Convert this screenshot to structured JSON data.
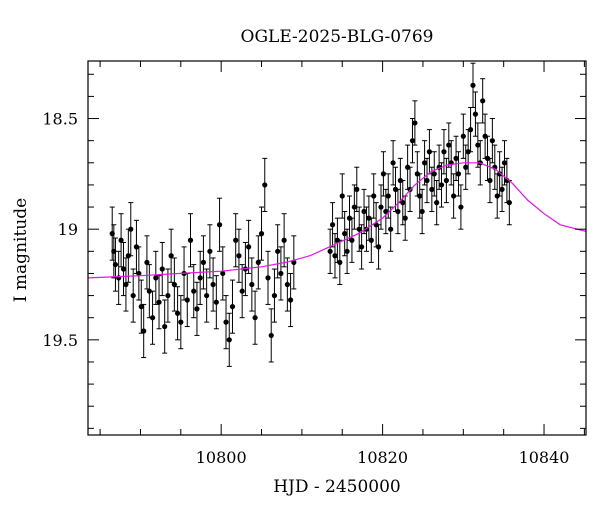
{
  "chart_data": {
    "type": "scatter",
    "title": "OGLE-2025-BLG-0769",
    "xlabel": "HJD - 2450000",
    "ylabel": "I magnitude",
    "xlim": [
      10783.5,
      10845.2
    ],
    "ylim": [
      19.93,
      18.24
    ],
    "y_inverted": true,
    "x_ticks": [
      10800,
      10820,
      10840
    ],
    "x_tick_labels": [
      "10800",
      "10820",
      "10840"
    ],
    "y_ticks": [
      18.5,
      19,
      19.5
    ],
    "y_tick_labels": [
      "18.5",
      "19",
      "19.5"
    ],
    "grid": false,
    "colors": {
      "points": "#000000",
      "model": "#e815e8",
      "frame": "#000000"
    },
    "series": [
      {
        "kind": "points",
        "points": [
          {
            "x": 10786.5,
            "y": 19.02,
            "e": 0.12
          },
          {
            "x": 10786.7,
            "y": 19.1,
            "e": 0.12
          },
          {
            "x": 10786.9,
            "y": 19.16,
            "e": 0.12
          },
          {
            "x": 10787.3,
            "y": 19.22,
            "e": 0.12
          },
          {
            "x": 10787.6,
            "y": 19.05,
            "e": 0.12
          },
          {
            "x": 10787.9,
            "y": 19.18,
            "e": 0.12
          },
          {
            "x": 10788.2,
            "y": 19.25,
            "e": 0.12
          },
          {
            "x": 10788.5,
            "y": 19.12,
            "e": 0.12
          },
          {
            "x": 10788.8,
            "y": 19.0,
            "e": 0.12
          },
          {
            "x": 10789.1,
            "y": 19.3,
            "e": 0.12
          },
          {
            "x": 10789.5,
            "y": 19.08,
            "e": 0.12
          },
          {
            "x": 10789.8,
            "y": 19.2,
            "e": 0.12
          },
          {
            "x": 10790.1,
            "y": 19.35,
            "e": 0.12
          },
          {
            "x": 10790.4,
            "y": 19.46,
            "e": 0.12
          },
          {
            "x": 10790.8,
            "y": 19.15,
            "e": 0.12
          },
          {
            "x": 10791.1,
            "y": 19.28,
            "e": 0.12
          },
          {
            "x": 10791.5,
            "y": 19.4,
            "e": 0.12
          },
          {
            "x": 10791.9,
            "y": 19.22,
            "e": 0.12
          },
          {
            "x": 10792.3,
            "y": 19.33,
            "e": 0.12
          },
          {
            "x": 10792.7,
            "y": 19.18,
            "e": 0.12
          },
          {
            "x": 10793.0,
            "y": 19.44,
            "e": 0.12
          },
          {
            "x": 10793.4,
            "y": 19.3,
            "e": 0.12
          },
          {
            "x": 10793.8,
            "y": 19.12,
            "e": 0.12
          },
          {
            "x": 10794.2,
            "y": 19.25,
            "e": 0.12
          },
          {
            "x": 10794.6,
            "y": 19.38,
            "e": 0.12
          },
          {
            "x": 10795.0,
            "y": 19.42,
            "e": 0.12
          },
          {
            "x": 10795.4,
            "y": 19.2,
            "e": 0.12
          },
          {
            "x": 10795.8,
            "y": 19.32,
            "e": 0.12
          },
          {
            "x": 10796.2,
            "y": 19.05,
            "e": 0.12
          },
          {
            "x": 10796.6,
            "y": 19.28,
            "e": 0.12
          },
          {
            "x": 10797.0,
            "y": 19.36,
            "e": 0.12
          },
          {
            "x": 10797.4,
            "y": 19.22,
            "e": 0.12
          },
          {
            "x": 10797.8,
            "y": 19.15,
            "e": 0.12
          },
          {
            "x": 10798.2,
            "y": 19.3,
            "e": 0.12
          },
          {
            "x": 10798.6,
            "y": 19.1,
            "e": 0.12
          },
          {
            "x": 10799.0,
            "y": 19.25,
            "e": 0.12
          },
          {
            "x": 10799.4,
            "y": 19.33,
            "e": 0.12
          },
          {
            "x": 10799.8,
            "y": 18.98,
            "e": 0.12
          },
          {
            "x": 10800.2,
            "y": 19.2,
            "e": 0.12
          },
          {
            "x": 10800.6,
            "y": 19.42,
            "e": 0.12
          },
          {
            "x": 10801.0,
            "y": 19.5,
            "e": 0.12
          },
          {
            "x": 10801.4,
            "y": 19.35,
            "e": 0.12
          },
          {
            "x": 10801.8,
            "y": 19.05,
            "e": 0.12
          },
          {
            "x": 10802.2,
            "y": 19.12,
            "e": 0.12
          },
          {
            "x": 10802.6,
            "y": 19.28,
            "e": 0.12
          },
          {
            "x": 10803.0,
            "y": 19.18,
            "e": 0.12
          },
          {
            "x": 10803.4,
            "y": 19.08,
            "e": 0.12
          },
          {
            "x": 10803.8,
            "y": 19.25,
            "e": 0.12
          },
          {
            "x": 10804.2,
            "y": 19.4,
            "e": 0.12
          },
          {
            "x": 10804.6,
            "y": 19.15,
            "e": 0.12
          },
          {
            "x": 10805.0,
            "y": 19.02,
            "e": 0.12
          },
          {
            "x": 10805.4,
            "y": 18.8,
            "e": 0.12
          },
          {
            "x": 10805.8,
            "y": 19.22,
            "e": 0.12
          },
          {
            "x": 10806.2,
            "y": 19.48,
            "e": 0.12
          },
          {
            "x": 10806.6,
            "y": 19.3,
            "e": 0.12
          },
          {
            "x": 10807.0,
            "y": 19.1,
            "e": 0.12
          },
          {
            "x": 10807.4,
            "y": 19.2,
            "e": 0.12
          },
          {
            "x": 10807.8,
            "y": 19.05,
            "e": 0.12
          },
          {
            "x": 10808.2,
            "y": 19.25,
            "e": 0.12
          },
          {
            "x": 10808.6,
            "y": 19.32,
            "e": 0.12
          },
          {
            "x": 10809.0,
            "y": 19.15,
            "e": 0.12
          },
          {
            "x": 10813.5,
            "y": 19.1,
            "e": 0.1
          },
          {
            "x": 10813.8,
            "y": 18.98,
            "e": 0.1
          },
          {
            "x": 10814.1,
            "y": 19.12,
            "e": 0.1
          },
          {
            "x": 10814.4,
            "y": 19.05,
            "e": 0.1
          },
          {
            "x": 10814.7,
            "y": 19.15,
            "e": 0.1
          },
          {
            "x": 10815.0,
            "y": 18.85,
            "e": 0.1
          },
          {
            "x": 10815.3,
            "y": 19.02,
            "e": 0.1
          },
          {
            "x": 10815.6,
            "y": 19.1,
            "e": 0.1
          },
          {
            "x": 10815.9,
            "y": 18.95,
            "e": 0.1
          },
          {
            "x": 10816.2,
            "y": 19.05,
            "e": 0.1
          },
          {
            "x": 10816.5,
            "y": 18.9,
            "e": 0.1
          },
          {
            "x": 10816.8,
            "y": 18.82,
            "e": 0.1
          },
          {
            "x": 10817.1,
            "y": 19.0,
            "e": 0.1
          },
          {
            "x": 10817.4,
            "y": 19.08,
            "e": 0.1
          },
          {
            "x": 10817.7,
            "y": 18.92,
            "e": 0.1
          },
          {
            "x": 10818.0,
            "y": 19.0,
            "e": 0.1
          },
          {
            "x": 10818.3,
            "y": 18.95,
            "e": 0.1
          },
          {
            "x": 10818.6,
            "y": 19.05,
            "e": 0.1
          },
          {
            "x": 10818.9,
            "y": 18.85,
            "e": 0.1
          },
          {
            "x": 10819.2,
            "y": 18.98,
            "e": 0.1
          },
          {
            "x": 10819.5,
            "y": 19.08,
            "e": 0.1
          },
          {
            "x": 10819.8,
            "y": 18.9,
            "e": 0.1
          },
          {
            "x": 10820.1,
            "y": 18.75,
            "e": 0.1
          },
          {
            "x": 10820.4,
            "y": 18.92,
            "e": 0.1
          },
          {
            "x": 10820.7,
            "y": 18.85,
            "e": 0.1
          },
          {
            "x": 10821.0,
            "y": 19.0,
            "e": 0.1
          },
          {
            "x": 10821.3,
            "y": 18.7,
            "e": 0.1
          },
          {
            "x": 10821.6,
            "y": 18.82,
            "e": 0.1
          },
          {
            "x": 10821.9,
            "y": 18.92,
            "e": 0.1
          },
          {
            "x": 10822.2,
            "y": 18.78,
            "e": 0.1
          },
          {
            "x": 10822.5,
            "y": 18.88,
            "e": 0.1
          },
          {
            "x": 10822.8,
            "y": 18.95,
            "e": 0.1
          },
          {
            "x": 10823.1,
            "y": 18.72,
            "e": 0.1
          },
          {
            "x": 10823.4,
            "y": 18.82,
            "e": 0.1
          },
          {
            "x": 10823.7,
            "y": 18.6,
            "e": 0.1
          },
          {
            "x": 10824.0,
            "y": 18.52,
            "e": 0.1
          },
          {
            "x": 10824.3,
            "y": 18.75,
            "e": 0.1
          },
          {
            "x": 10824.6,
            "y": 18.85,
            "e": 0.1
          },
          {
            "x": 10824.9,
            "y": 18.92,
            "e": 0.1
          },
          {
            "x": 10825.2,
            "y": 18.7,
            "e": 0.1
          },
          {
            "x": 10825.5,
            "y": 18.78,
            "e": 0.1
          },
          {
            "x": 10825.8,
            "y": 18.65,
            "e": 0.1
          },
          {
            "x": 10826.1,
            "y": 18.82,
            "e": 0.1
          },
          {
            "x": 10826.4,
            "y": 18.75,
            "e": 0.1
          },
          {
            "x": 10826.7,
            "y": 18.88,
            "e": 0.1
          },
          {
            "x": 10827.0,
            "y": 18.72,
            "e": 0.1
          },
          {
            "x": 10827.3,
            "y": 18.8,
            "e": 0.1
          },
          {
            "x": 10827.6,
            "y": 18.65,
            "e": 0.1
          },
          {
            "x": 10827.9,
            "y": 18.78,
            "e": 0.1
          },
          {
            "x": 10828.2,
            "y": 18.62,
            "e": 0.1
          },
          {
            "x": 10828.5,
            "y": 18.7,
            "e": 0.1
          },
          {
            "x": 10828.8,
            "y": 18.85,
            "e": 0.1
          },
          {
            "x": 10829.1,
            "y": 18.68,
            "e": 0.1
          },
          {
            "x": 10829.4,
            "y": 18.75,
            "e": 0.1
          },
          {
            "x": 10829.7,
            "y": 18.9,
            "e": 0.1
          },
          {
            "x": 10830.0,
            "y": 18.58,
            "e": 0.1
          },
          {
            "x": 10830.3,
            "y": 18.72,
            "e": 0.1
          },
          {
            "x": 10830.6,
            "y": 18.65,
            "e": 0.1
          },
          {
            "x": 10830.9,
            "y": 18.55,
            "e": 0.1
          },
          {
            "x": 10831.2,
            "y": 18.35,
            "e": 0.1
          },
          {
            "x": 10831.5,
            "y": 18.48,
            "e": 0.1
          },
          {
            "x": 10831.8,
            "y": 18.62,
            "e": 0.1
          },
          {
            "x": 10832.1,
            "y": 18.7,
            "e": 0.1
          },
          {
            "x": 10832.4,
            "y": 18.42,
            "e": 0.1
          },
          {
            "x": 10832.7,
            "y": 18.58,
            "e": 0.1
          },
          {
            "x": 10833.0,
            "y": 18.68,
            "e": 0.1
          },
          {
            "x": 10833.3,
            "y": 18.78,
            "e": 0.1
          },
          {
            "x": 10833.6,
            "y": 18.6,
            "e": 0.1
          },
          {
            "x": 10833.9,
            "y": 18.72,
            "e": 0.1
          },
          {
            "x": 10834.2,
            "y": 18.85,
            "e": 0.1
          },
          {
            "x": 10834.5,
            "y": 18.75,
            "e": 0.1
          },
          {
            "x": 10834.8,
            "y": 18.82,
            "e": 0.1
          },
          {
            "x": 10835.1,
            "y": 18.7,
            "e": 0.1
          },
          {
            "x": 10835.4,
            "y": 18.78,
            "e": 0.1
          },
          {
            "x": 10835.7,
            "y": 18.88,
            "e": 0.1
          }
        ]
      },
      {
        "kind": "line",
        "x": [
          10783.5,
          10790,
          10795,
          10800,
          10805,
          10808,
          10811,
          10814,
          10817,
          10820,
          10822,
          10824,
          10826,
          10828,
          10830,
          10832,
          10834,
          10836,
          10838,
          10840,
          10842,
          10845.2
        ],
        "y": [
          19.22,
          19.21,
          19.2,
          19.19,
          19.17,
          19.15,
          19.12,
          19.07,
          19.02,
          18.95,
          18.88,
          18.8,
          18.74,
          18.71,
          18.7,
          18.7,
          18.73,
          18.79,
          18.87,
          18.93,
          18.98,
          19.01
        ]
      }
    ]
  }
}
